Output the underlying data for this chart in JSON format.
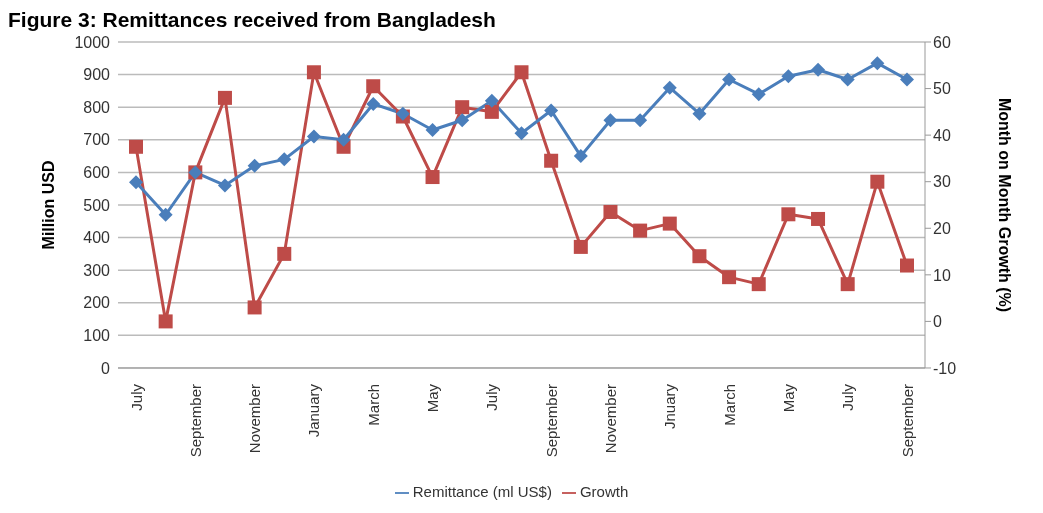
{
  "chart_data": {
    "type": "line",
    "title": "Figure 3: Remittances received from Bangladesh",
    "ylabel": "Million USD",
    "y2label": "Month on Month Growth (%)",
    "categories": [
      "July",
      null,
      "September",
      null,
      "November",
      null,
      "January",
      null,
      "March",
      null,
      "May",
      null,
      "July",
      null,
      "September",
      null,
      "November",
      null,
      "Jnuary",
      null,
      "March",
      null,
      "May",
      null,
      "July",
      null,
      "September"
    ],
    "series": [
      {
        "name": "Remittance (ml US$)",
        "color": "#4a7ebb",
        "marker": "diamond",
        "values": [
          570,
          470,
          600,
          560,
          620,
          640,
          710,
          700,
          810,
          780,
          730,
          760,
          820,
          720,
          790,
          650,
          760,
          760,
          860,
          780,
          885,
          840,
          895,
          915,
          885,
          935,
          885
        ]
      },
      {
        "name": "Growth",
        "color": "#be4b48",
        "marker": "square",
        "axis": "y2",
        "values": [
          37.5,
          0,
          32,
          48,
          3,
          14.5,
          53.5,
          37.5,
          50.5,
          44,
          31,
          46,
          45,
          53.5,
          34.5,
          16,
          23.5,
          19.5,
          21,
          14,
          9.5,
          8,
          23,
          22,
          8,
          30,
          12
        ]
      }
    ],
    "ylim": [
      0,
      1000
    ],
    "yticks": [
      0,
      100,
      200,
      300,
      400,
      500,
      600,
      700,
      800,
      900,
      1000
    ],
    "y2lim": [
      -10,
      60
    ],
    "y2ticks": [
      -10,
      0,
      10,
      20,
      30,
      40,
      50,
      60
    ],
    "grid": "y",
    "legend": "bottom"
  }
}
